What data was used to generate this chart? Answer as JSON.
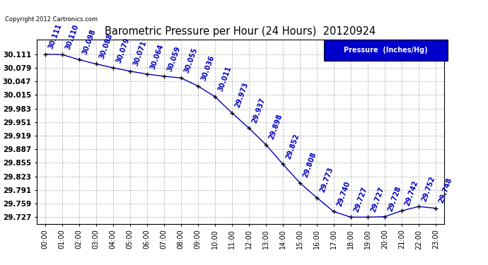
{
  "title": "Barometric Pressure per Hour (24 Hours)  20120924",
  "hours": [
    0,
    1,
    2,
    3,
    4,
    5,
    6,
    7,
    8,
    9,
    10,
    11,
    12,
    13,
    14,
    15,
    16,
    17,
    18,
    19,
    20,
    21,
    22,
    23
  ],
  "hour_labels": [
    "00:00",
    "01:00",
    "02:00",
    "03:00",
    "04:00",
    "05:00",
    "06:00",
    "07:00",
    "08:00",
    "09:00",
    "10:00",
    "11:00",
    "12:00",
    "13:00",
    "14:00",
    "15:00",
    "16:00",
    "17:00",
    "18:00",
    "19:00",
    "20:00",
    "21:00",
    "22:00",
    "23:00"
  ],
  "pressure": [
    30.111,
    30.11,
    30.098,
    30.088,
    30.079,
    30.071,
    30.064,
    30.059,
    30.055,
    30.036,
    30.011,
    29.973,
    29.937,
    29.898,
    29.852,
    29.808,
    29.773,
    29.74,
    29.727,
    29.727,
    29.728,
    29.742,
    29.752,
    29.748
  ],
  "ylim_min": 29.711,
  "ylim_max": 30.145,
  "yticks": [
    30.111,
    30.079,
    30.047,
    30.015,
    29.983,
    29.951,
    29.919,
    29.887,
    29.855,
    29.823,
    29.791,
    29.759,
    29.727
  ],
  "line_color": "#0000bb",
  "marker_color": "#000000",
  "grid_color": "#bbbbbb",
  "bg_color": "#ffffff",
  "legend_text": "Pressure  (Inches/Hg)",
  "legend_bg": "#0000cc",
  "legend_text_color": "#ffffff",
  "copyright_text": "Copyright 2012 Cartronics.com",
  "label_rotation": 70,
  "label_fontsize": 7.0,
  "title_fontsize": 10.5,
  "xtick_fontsize": 7.0,
  "ytick_fontsize": 7.5
}
